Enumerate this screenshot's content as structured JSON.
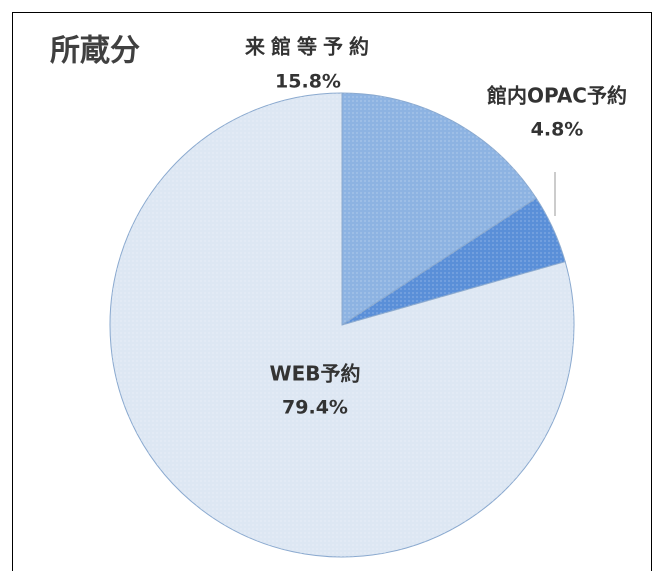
{
  "chart_data": {
    "type": "pie",
    "title": "所蔵分",
    "categories": [
      "来館等予約",
      "館内OPAC予約",
      "WEB予約"
    ],
    "values": [
      15.8,
      4.8,
      79.4
    ],
    "value_labels": [
      "15.8%",
      "4.8%",
      "79.4%"
    ],
    "colors": [
      "#8db3e2",
      "#5a8fd8",
      "#dde7f3"
    ]
  }
}
